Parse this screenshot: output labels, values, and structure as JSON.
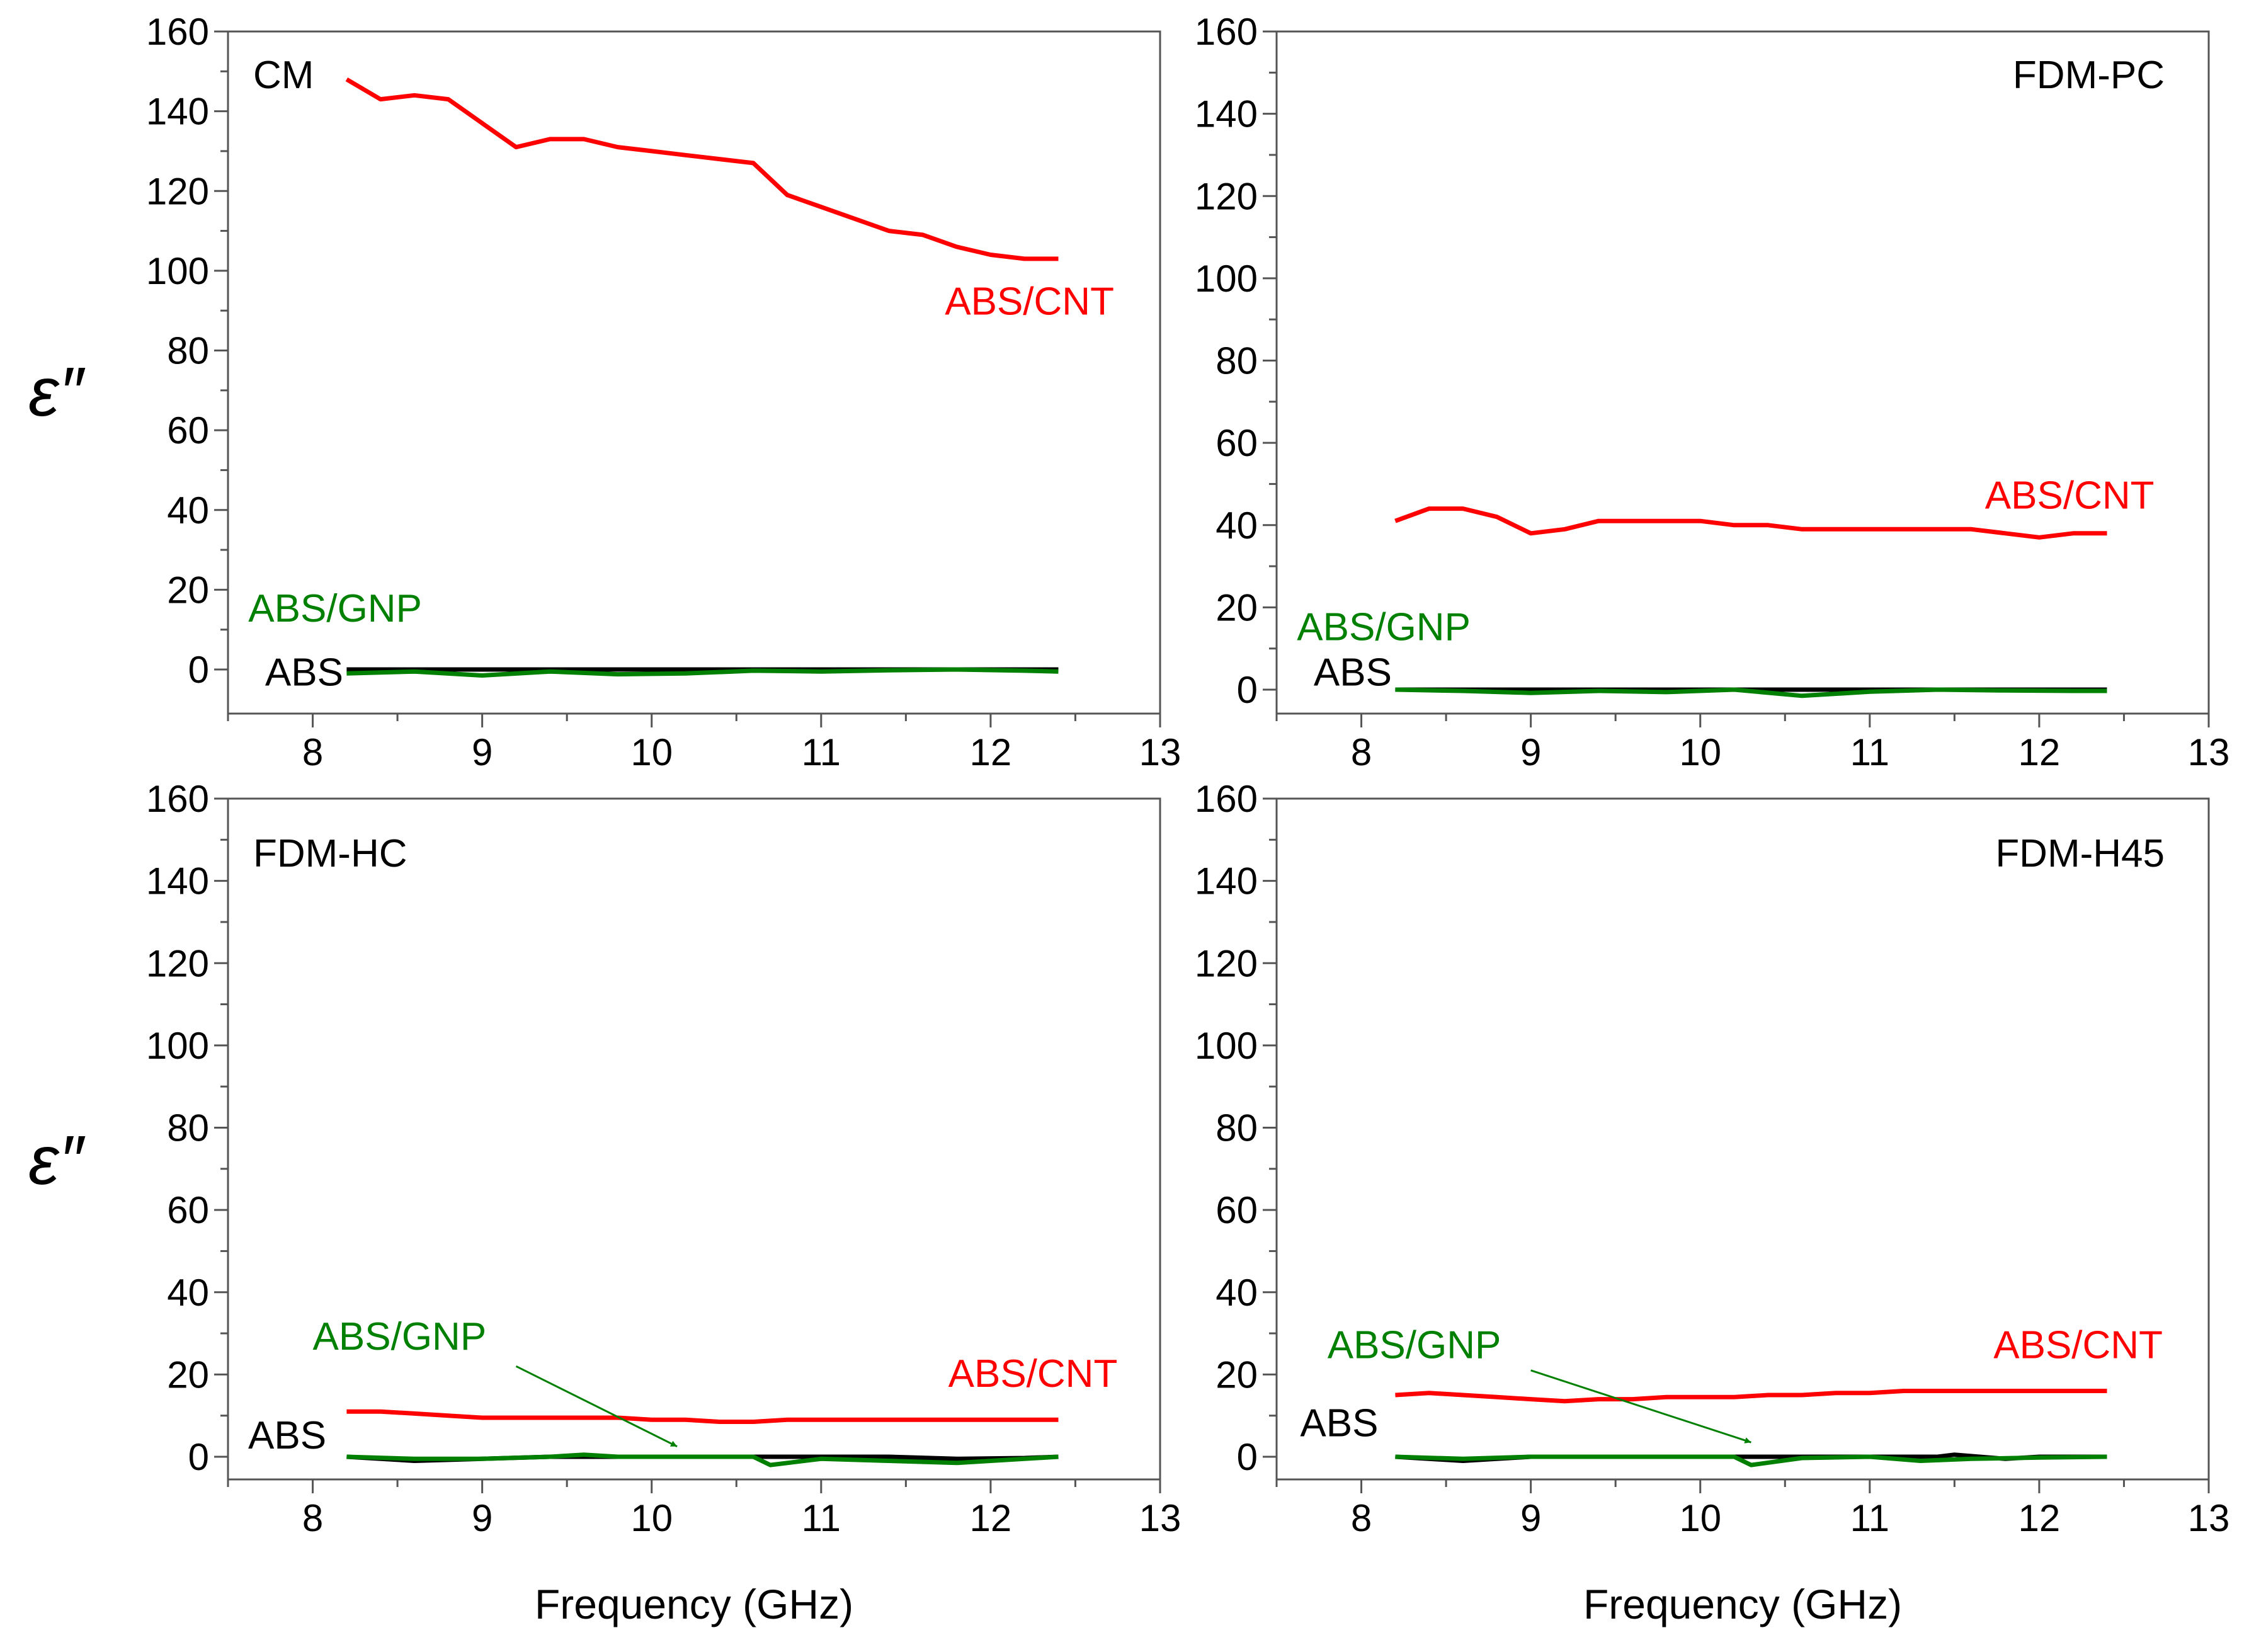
{
  "colors": {
    "ABS/CNT": "#ff0000",
    "ABS/GNP": "#008000",
    "ABS": "#000000"
  },
  "chart_data": [
    {
      "type": "line",
      "title": "CM",
      "xlabel": "",
      "ylabel": "ε″",
      "xlim": [
        7.5,
        13
      ],
      "ylim": [
        -10,
        160
      ],
      "xticks": [
        8,
        9,
        10,
        11,
        12,
        13
      ],
      "yticks": [
        0,
        20,
        40,
        60,
        80,
        100,
        120,
        140,
        160
      ],
      "series": [
        {
          "name": "ABS/CNT",
          "color": "#ff0000",
          "x": [
            8.2,
            8.4,
            8.6,
            8.8,
            9.0,
            9.2,
            9.4,
            9.6,
            9.8,
            10.0,
            10.2,
            10.4,
            10.6,
            10.8,
            11.0,
            11.2,
            11.4,
            11.6,
            11.8,
            12.0,
            12.2,
            12.4
          ],
          "y": [
            148,
            143,
            144,
            143,
            137,
            131,
            133,
            133,
            131,
            130,
            129,
            128,
            127,
            119,
            116,
            113,
            110,
            109,
            106,
            104,
            103,
            103
          ]
        },
        {
          "name": "ABS/GNP",
          "color": "#008000",
          "x": [
            8.2,
            8.6,
            9.0,
            9.4,
            9.8,
            10.2,
            10.6,
            11.0,
            11.4,
            11.8,
            12.2,
            12.4
          ],
          "y": [
            -1,
            -0.5,
            -1.5,
            -0.5,
            -1.2,
            -1,
            -0.3,
            -0.5,
            -0.2,
            0,
            -0.3,
            -0.5
          ]
        },
        {
          "name": "ABS",
          "color": "#000000",
          "x": [
            8.2,
            8.6,
            9.0,
            9.4,
            9.8,
            10.2,
            10.6,
            11.0,
            11.4,
            11.8,
            12.2,
            12.4
          ],
          "y": [
            0,
            0,
            0,
            0,
            0,
            0,
            0,
            0,
            0,
            0,
            0,
            0
          ]
        }
      ],
      "annotations": [
        {
          "text": "ABS/CNT",
          "x": 11.73,
          "y": 89,
          "color": "#ff0000",
          "anchor": "start"
        },
        {
          "text": "ABS/GNP",
          "x": 7.62,
          "y": 12,
          "color": "#008000",
          "anchor": "start"
        },
        {
          "text": "ABS",
          "x": 8.18,
          "y": -4,
          "color": "#000000",
          "anchor": "end"
        }
      ]
    },
    {
      "type": "line",
      "title": "FDM-PC",
      "xlabel": "",
      "ylabel": "",
      "xlim": [
        7.5,
        13
      ],
      "ylim": [
        -5,
        160
      ],
      "xticks": [
        8,
        9,
        10,
        11,
        12,
        13
      ],
      "yticks": [
        0,
        20,
        40,
        60,
        80,
        100,
        120,
        140,
        160
      ],
      "series": [
        {
          "name": "ABS/CNT",
          "color": "#ff0000",
          "x": [
            8.2,
            8.4,
            8.6,
            8.8,
            9.0,
            9.2,
            9.4,
            9.6,
            9.8,
            10.0,
            10.2,
            10.4,
            10.6,
            10.8,
            11.0,
            11.2,
            11.4,
            11.6,
            11.8,
            12.0,
            12.2,
            12.4
          ],
          "y": [
            41,
            44,
            44,
            42,
            38,
            39,
            41,
            41,
            41,
            41,
            40,
            40,
            39,
            39,
            39,
            39,
            39,
            39,
            38,
            37,
            38,
            38
          ]
        },
        {
          "name": "ABS/GNP",
          "color": "#008000",
          "x": [
            8.2,
            8.6,
            9.0,
            9.4,
            9.8,
            10.2,
            10.6,
            11.0,
            11.4,
            11.8,
            12.2,
            12.4
          ],
          "y": [
            0,
            -0.3,
            -0.8,
            -0.3,
            -0.6,
            0,
            -1.5,
            -0.5,
            0,
            -0.2,
            -0.3,
            -0.3
          ]
        },
        {
          "name": "ABS",
          "color": "#000000",
          "x": [
            8.2,
            8.6,
            9.0,
            9.4,
            9.8,
            10.2,
            10.6,
            11.0,
            11.4,
            11.8,
            12.2,
            12.4
          ],
          "y": [
            0,
            0,
            0,
            0,
            0,
            0,
            0,
            0,
            0,
            0,
            0,
            0
          ]
        }
      ],
      "annotations": [
        {
          "text": "ABS/CNT",
          "x": 11.68,
          "y": 44,
          "color": "#ff0000",
          "anchor": "start"
        },
        {
          "text": "ABS/GNP",
          "x": 7.62,
          "y": 12,
          "color": "#008000",
          "anchor": "start"
        },
        {
          "text": "ABS",
          "x": 8.18,
          "y": 1,
          "color": "#000000",
          "anchor": "end"
        }
      ]
    },
    {
      "type": "line",
      "title": "FDM-HC",
      "xlabel": "Frequency (GHz)",
      "ylabel": "ε″",
      "xlim": [
        7.5,
        13
      ],
      "ylim": [
        -5,
        160
      ],
      "xticks": [
        8,
        9,
        10,
        11,
        12,
        13
      ],
      "yticks": [
        0,
        20,
        40,
        60,
        80,
        100,
        120,
        140,
        160
      ],
      "series": [
        {
          "name": "ABS/CNT",
          "color": "#ff0000",
          "x": [
            8.2,
            8.4,
            8.6,
            8.8,
            9.0,
            9.2,
            9.4,
            9.6,
            9.8,
            10.0,
            10.2,
            10.4,
            10.6,
            10.8,
            11.0,
            11.2,
            11.4,
            11.6,
            11.8,
            12.0,
            12.2,
            12.4
          ],
          "y": [
            11,
            11,
            10.5,
            10,
            9.5,
            9.5,
            9.5,
            9.5,
            9.5,
            9,
            9,
            8.5,
            8.5,
            9,
            9,
            9,
            9,
            9,
            9,
            9,
            9,
            9
          ]
        },
        {
          "name": "ABS/GNP",
          "color": "#008000",
          "x": [
            8.2,
            8.6,
            9.0,
            9.4,
            9.6,
            9.8,
            10.2,
            10.6,
            10.7,
            11.0,
            11.4,
            11.8,
            12.2,
            12.4
          ],
          "y": [
            0,
            -0.5,
            -0.5,
            0,
            0.5,
            0,
            0,
            0,
            -2,
            -0.5,
            -1,
            -1.5,
            -0.5,
            0
          ]
        },
        {
          "name": "ABS",
          "color": "#000000",
          "x": [
            8.2,
            8.6,
            9.0,
            9.4,
            9.8,
            10.2,
            10.6,
            11.0,
            11.4,
            11.8,
            12.2,
            12.4
          ],
          "y": [
            0,
            -1,
            -0.5,
            0,
            0,
            0,
            0,
            0,
            0,
            -0.5,
            -0.3,
            0
          ]
        }
      ],
      "annotations": [
        {
          "text": "ABS/CNT",
          "x": 11.75,
          "y": 17,
          "color": "#ff0000",
          "anchor": "start"
        },
        {
          "text": "ABS/GNP",
          "x": 8.0,
          "y": 26,
          "color": "#008000",
          "anchor": "start"
        },
        {
          "text": "ABS",
          "x": 8.08,
          "y": 2,
          "color": "#000000",
          "anchor": "end"
        }
      ],
      "arrow": {
        "from": [
          9.2,
          22
        ],
        "to": [
          10.15,
          2.5
        ],
        "color": "#008000"
      }
    },
    {
      "type": "line",
      "title": "FDM-H45",
      "xlabel": "Frequency (GHz)",
      "ylabel": "",
      "xlim": [
        7.5,
        13
      ],
      "ylim": [
        -5,
        160
      ],
      "xticks": [
        8,
        9,
        10,
        11,
        12,
        13
      ],
      "yticks": [
        0,
        20,
        40,
        60,
        80,
        100,
        120,
        140,
        160
      ],
      "series": [
        {
          "name": "ABS/CNT",
          "color": "#ff0000",
          "x": [
            8.2,
            8.4,
            8.6,
            8.8,
            9.0,
            9.2,
            9.4,
            9.6,
            9.8,
            10.0,
            10.2,
            10.4,
            10.6,
            10.8,
            11.0,
            11.2,
            11.4,
            11.6,
            11.8,
            12.0,
            12.2,
            12.4
          ],
          "y": [
            15,
            15.5,
            15,
            14.5,
            14,
            13.5,
            14,
            14,
            14.5,
            14.5,
            14.5,
            15,
            15,
            15.5,
            15.5,
            16,
            16,
            16,
            16,
            16,
            16,
            16
          ]
        },
        {
          "name": "ABS/GNP",
          "color": "#008000",
          "x": [
            8.2,
            8.6,
            9.0,
            9.4,
            9.8,
            10.2,
            10.3,
            10.6,
            11.0,
            11.3,
            11.6,
            12.0,
            12.4
          ],
          "y": [
            0,
            -0.5,
            0,
            0,
            0,
            0,
            -2,
            -0.3,
            0,
            -1,
            -0.5,
            -0.2,
            0
          ]
        },
        {
          "name": "ABS",
          "color": "#000000",
          "x": [
            8.2,
            8.6,
            9.0,
            9.4,
            9.8,
            10.2,
            10.6,
            11.0,
            11.4,
            11.5,
            11.8,
            12.0,
            12.4
          ],
          "y": [
            0,
            -1,
            0,
            0,
            0,
            0,
            0,
            0,
            0,
            0.5,
            -0.5,
            0,
            0
          ]
        }
      ],
      "annotations": [
        {
          "text": "ABS/CNT",
          "x": 11.73,
          "y": 24,
          "color": "#ff0000",
          "anchor": "start"
        },
        {
          "text": "ABS/GNP",
          "x": 7.8,
          "y": 24,
          "color": "#008000",
          "anchor": "start"
        },
        {
          "text": "ABS",
          "x": 8.1,
          "y": 5,
          "color": "#000000",
          "anchor": "end"
        }
      ],
      "arrow": {
        "from": [
          9.0,
          21
        ],
        "to": [
          10.3,
          3.5
        ],
        "color": "#008000"
      }
    }
  ]
}
